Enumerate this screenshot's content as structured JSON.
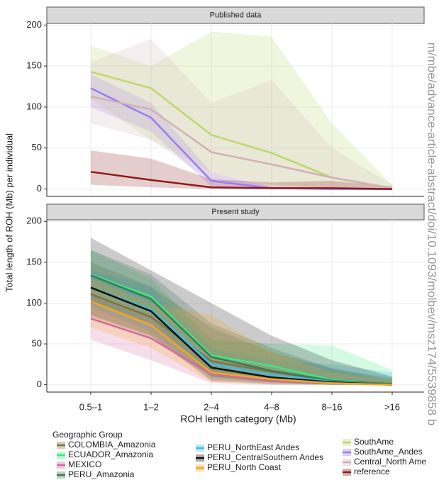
{
  "axes": {
    "y_label": "Total length of ROH (Mb) per individual",
    "x_label": "ROH length category (Mb)",
    "legend_title": "Geographic Group",
    "watermark": "m/mbe/advance-article-abstract/doi/10.1093/molbev/msz174/5539858 b"
  },
  "chart_data": [
    {
      "type": "line",
      "title": "Published data",
      "ylim": [
        -9,
        202
      ],
      "yticks": [
        0,
        50,
        100,
        150,
        200
      ],
      "grid": true,
      "series": [
        {
          "name": "SouthAme",
          "color": "#bcd86a",
          "values": [
            143,
            123,
            66,
            44,
            14,
            1
          ],
          "lower": [
            110,
            60,
            20,
            5,
            0,
            0
          ],
          "upper": [
            175,
            150,
            192,
            186,
            80,
            5
          ]
        },
        {
          "name": "SouthAme_Andes",
          "color": "#9b7cf0",
          "values": [
            123,
            87,
            10,
            1,
            0,
            0
          ],
          "lower": [
            100,
            70,
            3,
            0,
            0,
            0
          ],
          "upper": [
            140,
            105,
            20,
            3,
            1,
            0
          ]
        },
        {
          "name": "Central_North Ame",
          "color": "#d2b0b6",
          "values": [
            113,
            97,
            45,
            30,
            14,
            1
          ],
          "lower": [
            80,
            60,
            10,
            5,
            2,
            0
          ],
          "upper": [
            155,
            183,
            105,
            133,
            50,
            5
          ]
        },
        {
          "name": "reference",
          "color": "#8b1a1a",
          "values": [
            21,
            11,
            2,
            1,
            1,
            0
          ],
          "lower": [
            5,
            2,
            0,
            0,
            0,
            0
          ],
          "upper": [
            47,
            37,
            12,
            8,
            10,
            3
          ]
        }
      ]
    },
    {
      "type": "line",
      "title": "Present study",
      "ylim": [
        -9,
        202
      ],
      "yticks": [
        0,
        50,
        100,
        150,
        200
      ],
      "grid": true,
      "categories": [
        "0.5–1",
        "1–2",
        "2–4",
        "4–8",
        "8–16",
        ">16"
      ],
      "series": [
        {
          "name": "COLOMBIA_Amazonia",
          "color": "#7d7345",
          "values": [
            111,
            83,
            29,
            16,
            5,
            1
          ],
          "lower": [
            80,
            55,
            10,
            3,
            0,
            0
          ],
          "upper": [
            150,
            120,
            70,
            40,
            20,
            5
          ]
        },
        {
          "name": "ECUADOR_Amazonia",
          "color": "#3de87f",
          "values": [
            135,
            108,
            36,
            23,
            6,
            1
          ],
          "lower": [
            100,
            80,
            15,
            5,
            0,
            0
          ],
          "upper": [
            165,
            130,
            55,
            50,
            48,
            18
          ]
        },
        {
          "name": "MEXICO",
          "color": "#d26ba0",
          "values": [
            81,
            57,
            13,
            5,
            2,
            0
          ],
          "lower": [
            55,
            30,
            2,
            0,
            0,
            0
          ],
          "upper": [
            110,
            85,
            30,
            15,
            8,
            3
          ]
        },
        {
          "name": "PERU_Amazonia",
          "color": "#3b7a57",
          "values": [
            134,
            105,
            34,
            17,
            5,
            1
          ],
          "lower": [
            100,
            75,
            10,
            3,
            0,
            0
          ],
          "upper": [
            165,
            135,
            75,
            45,
            20,
            8
          ]
        },
        {
          "name": "PERU_NorthEast Andes",
          "color": "#38c0e8",
          "values": [
            119,
            92,
            25,
            12,
            4,
            0
          ],
          "lower": [
            95,
            65,
            8,
            3,
            0,
            0
          ],
          "upper": [
            140,
            120,
            45,
            30,
            25,
            15
          ]
        },
        {
          "name": "PERU_CentralSouthern Andes",
          "color": "#111111",
          "values": [
            119,
            90,
            21,
            9,
            3,
            0
          ],
          "lower": [
            85,
            60,
            5,
            1,
            0,
            0
          ],
          "upper": [
            180,
            140,
            100,
            60,
            30,
            10
          ]
        },
        {
          "name": "PERU_North Coast",
          "color": "#f5a623",
          "values": [
            102,
            73,
            15,
            7,
            2,
            0
          ],
          "lower": [
            70,
            45,
            3,
            0,
            0,
            -2
          ],
          "upper": [
            130,
            100,
            85,
            40,
            15,
            5
          ]
        }
      ]
    }
  ]
}
